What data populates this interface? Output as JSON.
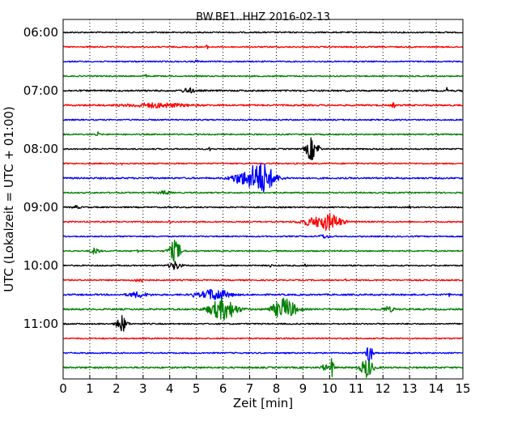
{
  "chart_data": {
    "type": "line",
    "title": "BW.BE1..HHZ 2016-02-13",
    "xlabel": "Zeit  [min]",
    "ylabel": "UTC (Lokalzeit = UTC + 01:00)",
    "xlim": [
      0,
      15
    ],
    "x_ticks": [
      "0",
      "1",
      "2",
      "3",
      "4",
      "5",
      "6",
      "7",
      "8",
      "9",
      "10",
      "11",
      "12",
      "13",
      "14",
      "15"
    ],
    "grid": {
      "x": true,
      "style": "dotted"
    },
    "y_tick_labels": [
      {
        "label": "06:00",
        "trace": 0
      },
      {
        "label": "07:00",
        "trace": 4
      },
      {
        "label": "08:00",
        "trace": 8
      },
      {
        "label": "09:00",
        "trace": 12
      },
      {
        "label": "10:00",
        "trace": 16
      },
      {
        "label": "11:00",
        "trace": 20
      }
    ],
    "trace_interval_min": 15,
    "color_cycle": [
      "#000000",
      "#ff0000",
      "#0000ff",
      "#008000"
    ],
    "series": [
      {
        "start": "06:00",
        "color": "#000000",
        "noise": 0.8,
        "events": []
      },
      {
        "start": "06:15",
        "color": "#ff0000",
        "noise": 0.8,
        "events": [
          {
            "t": 5.4,
            "amp": 2.5,
            "dur": 0.05
          }
        ]
      },
      {
        "start": "06:30",
        "color": "#0000ff",
        "noise": 0.8,
        "events": [
          {
            "t": 5.0,
            "amp": 1.5,
            "dur": 0.1
          }
        ]
      },
      {
        "start": "06:45",
        "color": "#008000",
        "noise": 0.8,
        "events": [
          {
            "t": 3.1,
            "amp": 1.5,
            "dur": 0.05
          }
        ]
      },
      {
        "start": "07:00",
        "color": "#000000",
        "noise": 1.0,
        "events": [
          {
            "t": 4.7,
            "amp": 3,
            "dur": 0.3
          },
          {
            "t": 14.4,
            "amp": 3,
            "dur": 0.05
          }
        ]
      },
      {
        "start": "07:15",
        "color": "#ff0000",
        "noise": 1.0,
        "events": [
          {
            "t": 3.5,
            "amp": 2.5,
            "dur": 1.5
          },
          {
            "t": 12.4,
            "amp": 2.5,
            "dur": 0.1
          }
        ]
      },
      {
        "start": "07:30",
        "color": "#0000ff",
        "noise": 0.8,
        "events": []
      },
      {
        "start": "07:45",
        "color": "#008000",
        "noise": 0.8,
        "events": [
          {
            "t": 1.3,
            "amp": 2.5,
            "dur": 0.1
          }
        ]
      },
      {
        "start": "08:00",
        "color": "#000000",
        "noise": 0.8,
        "events": [
          {
            "t": 9.3,
            "amp": 14,
            "dur": 0.25
          },
          {
            "t": 9.6,
            "amp": 6,
            "dur": 0.08
          },
          {
            "t": 5.5,
            "amp": 2,
            "dur": 0.05
          }
        ]
      },
      {
        "start": "08:15",
        "color": "#ff0000",
        "noise": 0.8,
        "events": [
          {
            "t": 2.2,
            "amp": 3,
            "dur": 0.05
          }
        ]
      },
      {
        "start": "08:30",
        "color": "#0000ff",
        "noise": 1.0,
        "events": [
          {
            "t": 7.4,
            "amp": 20,
            "dur": 0.7
          },
          {
            "t": 6.6,
            "amp": 5,
            "dur": 0.5
          }
        ]
      },
      {
        "start": "08:45",
        "color": "#008000",
        "noise": 0.8,
        "events": [
          {
            "t": 3.8,
            "amp": 2,
            "dur": 0.3
          }
        ]
      },
      {
        "start": "09:00",
        "color": "#000000",
        "noise": 0.8,
        "events": [
          {
            "t": 0.5,
            "amp": 1.5,
            "dur": 0.2
          },
          {
            "t": 4.0,
            "amp": 3,
            "dur": 0.05
          },
          {
            "t": 13.0,
            "amp": 3,
            "dur": 0.05
          }
        ]
      },
      {
        "start": "09:15",
        "color": "#ff0000",
        "noise": 0.8,
        "events": [
          {
            "t": 10.0,
            "amp": 10,
            "dur": 0.6
          },
          {
            "t": 9.3,
            "amp": 4,
            "dur": 0.6
          },
          {
            "t": 4.0,
            "amp": 3,
            "dur": 0.05
          }
        ]
      },
      {
        "start": "09:30",
        "color": "#0000ff",
        "noise": 0.8,
        "events": [
          {
            "t": 9.8,
            "amp": 2,
            "dur": 0.3
          }
        ]
      },
      {
        "start": "09:45",
        "color": "#008000",
        "noise": 0.8,
        "events": [
          {
            "t": 4.2,
            "amp": 13,
            "dur": 0.3
          },
          {
            "t": 1.2,
            "amp": 4,
            "dur": 0.2
          },
          {
            "t": 2.8,
            "amp": 2,
            "dur": 0.05
          }
        ]
      },
      {
        "start": "10:00",
        "color": "#000000",
        "noise": 0.8,
        "events": [
          {
            "t": 4.2,
            "amp": 5,
            "dur": 0.3
          },
          {
            "t": 7.8,
            "amp": 2.5,
            "dur": 0.05
          },
          {
            "t": 9.1,
            "amp": 2.5,
            "dur": 0.05
          }
        ]
      },
      {
        "start": "10:15",
        "color": "#ff0000",
        "noise": 0.8,
        "events": [
          {
            "t": 2.9,
            "amp": 2,
            "dur": 0.3
          },
          {
            "t": 10.6,
            "amp": 2,
            "dur": 0.05
          }
        ]
      },
      {
        "start": "10:30",
        "color": "#0000ff",
        "noise": 1.0,
        "events": [
          {
            "t": 5.7,
            "amp": 7,
            "dur": 0.7
          },
          {
            "t": 2.8,
            "amp": 3,
            "dur": 0.5
          },
          {
            "t": 4.9,
            "amp": 3,
            "dur": 0.05
          },
          {
            "t": 14.5,
            "amp": 2,
            "dur": 0.05
          }
        ]
      },
      {
        "start": "10:45",
        "color": "#008000",
        "noise": 1.0,
        "events": [
          {
            "t": 6.0,
            "amp": 13,
            "dur": 0.7
          },
          {
            "t": 8.3,
            "amp": 13,
            "dur": 0.6
          },
          {
            "t": 12.2,
            "amp": 3,
            "dur": 0.3
          }
        ]
      },
      {
        "start": "11:00",
        "color": "#000000",
        "noise": 0.8,
        "events": [
          {
            "t": 2.2,
            "amp": 10,
            "dur": 0.25
          }
        ]
      },
      {
        "start": "11:15",
        "color": "#ff0000",
        "noise": 0.8,
        "events": []
      },
      {
        "start": "11:30",
        "color": "#0000ff",
        "noise": 0.8,
        "events": [
          {
            "t": 11.5,
            "amp": 13,
            "dur": 0.15
          }
        ]
      },
      {
        "start": "11:45",
        "color": "#008000",
        "noise": 1.0,
        "events": [
          {
            "t": 10.1,
            "amp": 12,
            "dur": 0.1
          },
          {
            "t": 11.4,
            "amp": 12,
            "dur": 0.3
          },
          {
            "t": 9.8,
            "amp": 3,
            "dur": 0.2
          }
        ]
      }
    ]
  }
}
